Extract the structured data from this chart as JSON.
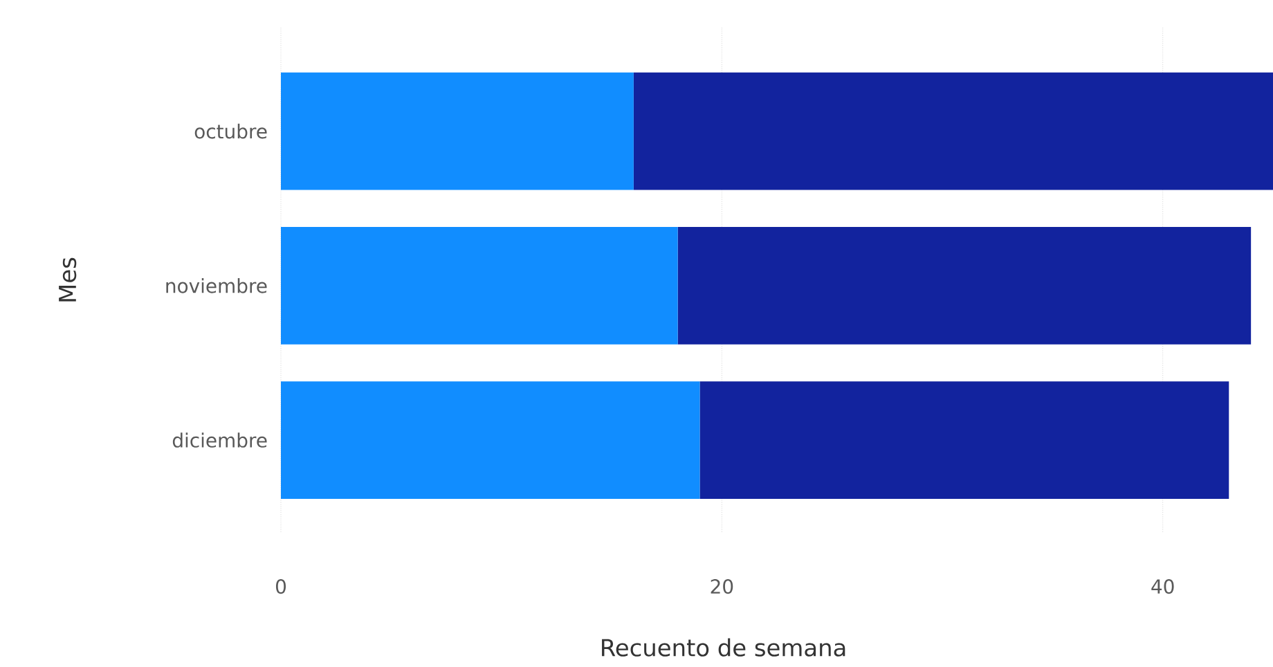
{
  "chart_data": {
    "type": "bar",
    "orientation": "horizontal",
    "stacked": true,
    "categories": [
      "octubre",
      "noviembre",
      "diciembre"
    ],
    "series": [
      {
        "color": "#118dff",
        "values": [
          16,
          18,
          19
        ]
      },
      {
        "color": "#12239e",
        "values": [
          29,
          26,
          24
        ]
      }
    ],
    "xlim": [
      0,
      45
    ],
    "xticks": [
      0,
      20,
      40
    ],
    "grid": "x",
    "xlabel": "Recuento de semana",
    "ylabel": "Mes"
  }
}
